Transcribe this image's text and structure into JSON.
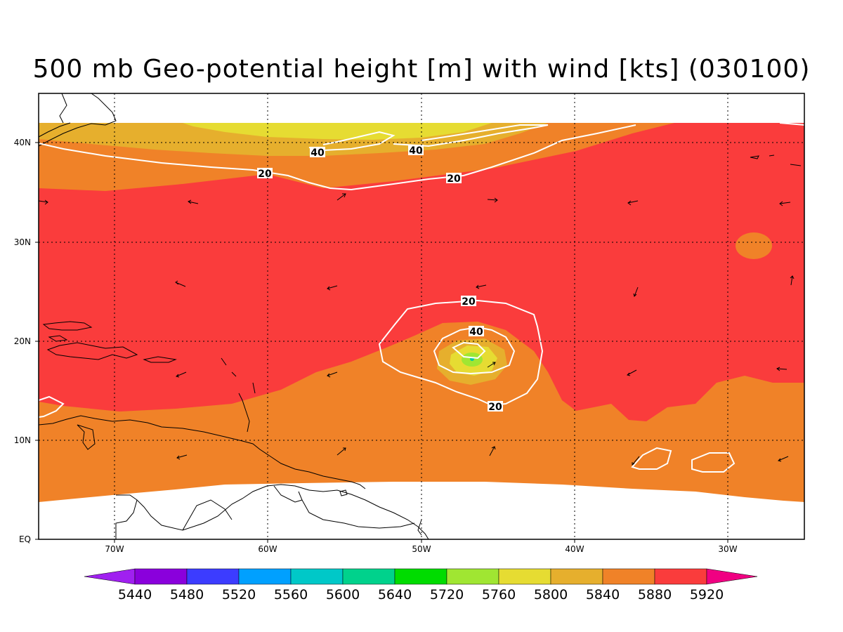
{
  "title": "500 mb Geo-potential height [m] with wind [kts] (030100)",
  "lon_ticks": [
    "70W",
    "60W",
    "50W",
    "40W",
    "30W"
  ],
  "lat_ticks": [
    "EQ",
    "10N",
    "20N",
    "30N",
    "40N"
  ],
  "contour_labels": [
    "20",
    "20",
    "20",
    "20",
    "40",
    "40",
    "40"
  ],
  "colorbar": {
    "labels": [
      "5440",
      "5480",
      "5520",
      "5560",
      "5600",
      "5640",
      "5720",
      "5760",
      "5800",
      "5840",
      "5880",
      "5920"
    ],
    "colors": [
      "#a020f0",
      "#8a00dc",
      "#3c3cff",
      "#00a0ff",
      "#00c8c8",
      "#00d28c",
      "#00dc00",
      "#a0e632",
      "#e6dc32",
      "#e6af2d",
      "#f08228",
      "#fa3c3c",
      "#f00082"
    ]
  },
  "field_colors": {
    "5720": "#a0e632",
    "5760": "#e6dc32",
    "5800": "#e6af2d",
    "5840": "#f08228",
    "5880": "#fa3c3c"
  }
}
